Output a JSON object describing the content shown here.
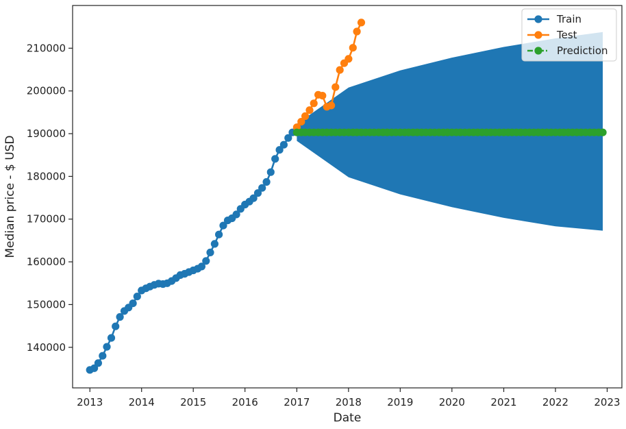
{
  "chart_data": {
    "type": "line",
    "title": "",
    "xlabel": "Date",
    "ylabel": "Median price - $ USD",
    "xlim": [
      "2012-09-01",
      "2023-04-15"
    ],
    "ylim": [
      130500,
      220000
    ],
    "x_ticks": [
      "2013",
      "2014",
      "2015",
      "2016",
      "2017",
      "2018",
      "2019",
      "2020",
      "2021",
      "2022",
      "2023"
    ],
    "y_ticks": [
      140000,
      150000,
      160000,
      170000,
      180000,
      190000,
      200000,
      210000
    ],
    "grid": false,
    "legend": {
      "position": "top-right",
      "entries": [
        "Train",
        "Test",
        "Prediction"
      ]
    },
    "colors": {
      "train": "#1f77b4",
      "test": "#ff7f0e",
      "prediction": "#2ca02c",
      "band": "#1f77b4"
    },
    "series": [
      {
        "name": "Train",
        "style": "solid-line-circle-markers",
        "x": [
          "2013-01",
          "2013-02",
          "2013-03",
          "2013-04",
          "2013-05",
          "2013-06",
          "2013-07",
          "2013-08",
          "2013-09",
          "2013-10",
          "2013-11",
          "2013-12",
          "2014-01",
          "2014-02",
          "2014-03",
          "2014-04",
          "2014-05",
          "2014-06",
          "2014-07",
          "2014-08",
          "2014-09",
          "2014-10",
          "2014-11",
          "2014-12",
          "2015-01",
          "2015-02",
          "2015-03",
          "2015-04",
          "2015-05",
          "2015-06",
          "2015-07",
          "2015-08",
          "2015-09",
          "2015-10",
          "2015-11",
          "2015-12",
          "2016-01",
          "2016-02",
          "2016-03",
          "2016-04",
          "2016-05",
          "2016-06",
          "2016-07",
          "2016-08",
          "2016-09",
          "2016-10",
          "2016-11",
          "2016-12"
        ],
        "values": [
          134700,
          135100,
          136300,
          138000,
          140100,
          142200,
          144900,
          147100,
          148500,
          149300,
          150300,
          151900,
          153300,
          153800,
          154200,
          154600,
          154900,
          154800,
          155000,
          155500,
          156200,
          156900,
          157200,
          157600,
          158000,
          158400,
          158900,
          160200,
          162200,
          164200,
          166400,
          168500,
          169700,
          170200,
          171100,
          172400,
          173400,
          174100,
          174900,
          176100,
          177300,
          178700,
          181000,
          184100,
          186200,
          187400,
          189000,
          190300
        ]
      },
      {
        "name": "Test",
        "style": "solid-line-circle-markers",
        "x": [
          "2017-01",
          "2017-02",
          "2017-03",
          "2017-04",
          "2017-05",
          "2017-06",
          "2017-07",
          "2017-08",
          "2017-09",
          "2017-10",
          "2017-11",
          "2017-12",
          "2018-01",
          "2018-02",
          "2018-03",
          "2018-04"
        ],
        "values": [
          191500,
          192800,
          194100,
          195500,
          197100,
          199100,
          198900,
          196300,
          196600,
          200900,
          204900,
          206500,
          207500,
          210100,
          213900,
          216000
        ]
      },
      {
        "name": "Prediction",
        "style": "dash-dot-line-circle-markers",
        "x_start": "2017-01",
        "x_end": "2022-12",
        "frequency": "monthly",
        "constant_value": 190300
      }
    ],
    "confidence_band": {
      "x": [
        "2017-01",
        "2018-01",
        "2019-01",
        "2020-01",
        "2021-01",
        "2022-01",
        "2022-12"
      ],
      "upper": [
        192300,
        200800,
        204800,
        207800,
        210300,
        212300,
        213800
      ],
      "lower": [
        188300,
        179800,
        175800,
        172800,
        170300,
        168300,
        167300
      ]
    }
  }
}
